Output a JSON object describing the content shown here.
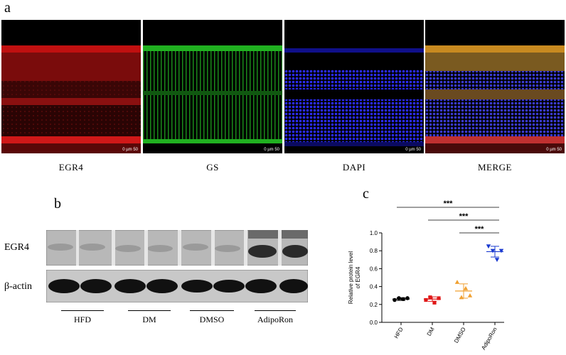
{
  "figure": {
    "panel_a_letter": "a",
    "panel_b_letter": "b",
    "panel_c_letter": "c"
  },
  "panel_a": {
    "images": [
      {
        "label": "EGR4",
        "color": "#d01818",
        "scale_text": "0   µm   50"
      },
      {
        "label": "GS",
        "color": "#1aa31a",
        "scale_text": "0   µm   50"
      },
      {
        "label": "DAPI",
        "color": "#1a1ae8",
        "scale_text": "0   µm   50"
      },
      {
        "label": "MERGE",
        "color": "#c88a20",
        "scale_text": "0   µm   50"
      }
    ]
  },
  "panel_b": {
    "rows": [
      {
        "label": "EGR4"
      },
      {
        "label": "β-actin"
      }
    ],
    "groups": [
      "HFD",
      "DM",
      "DMSO",
      "AdipoRon"
    ]
  },
  "chart_data": {
    "type": "scatter",
    "categories": [
      "HFD",
      "DM",
      "DMSO",
      "AdipoRon"
    ],
    "ylabel": "Relative protein level\nof EGR4",
    "xlabel": "",
    "ylim": [
      0,
      1.0
    ],
    "yticks": [
      "0.0",
      "0.2",
      "0.4",
      "0.6",
      "0.8",
      "1.0"
    ],
    "series": [
      {
        "category": "HFD",
        "color": "#000000",
        "marker": "circle",
        "points": [
          0.25,
          0.27,
          0.26,
          0.27
        ],
        "mean": 0.26,
        "sd": 0.015
      },
      {
        "category": "DM",
        "color": "#e01818",
        "marker": "square",
        "points": [
          0.25,
          0.28,
          0.22,
          0.27
        ],
        "mean": 0.26,
        "sd": 0.025
      },
      {
        "category": "DMSO",
        "color": "#f0a030",
        "marker": "triangle-up",
        "points": [
          0.45,
          0.28,
          0.38,
          0.3
        ],
        "mean": 0.35,
        "sd": 0.08
      },
      {
        "category": "AdipoRon",
        "color": "#1a3ad0",
        "marker": "triangle-down",
        "points": [
          0.85,
          0.8,
          0.7,
          0.8
        ],
        "mean": 0.79,
        "sd": 0.06
      }
    ],
    "significance": [
      {
        "from": "HFD",
        "to": "AdipoRon",
        "label": "***"
      },
      {
        "from": "DM",
        "to": "AdipoRon",
        "label": "***"
      },
      {
        "from": "DMSO",
        "to": "AdipoRon",
        "label": "***"
      }
    ]
  }
}
